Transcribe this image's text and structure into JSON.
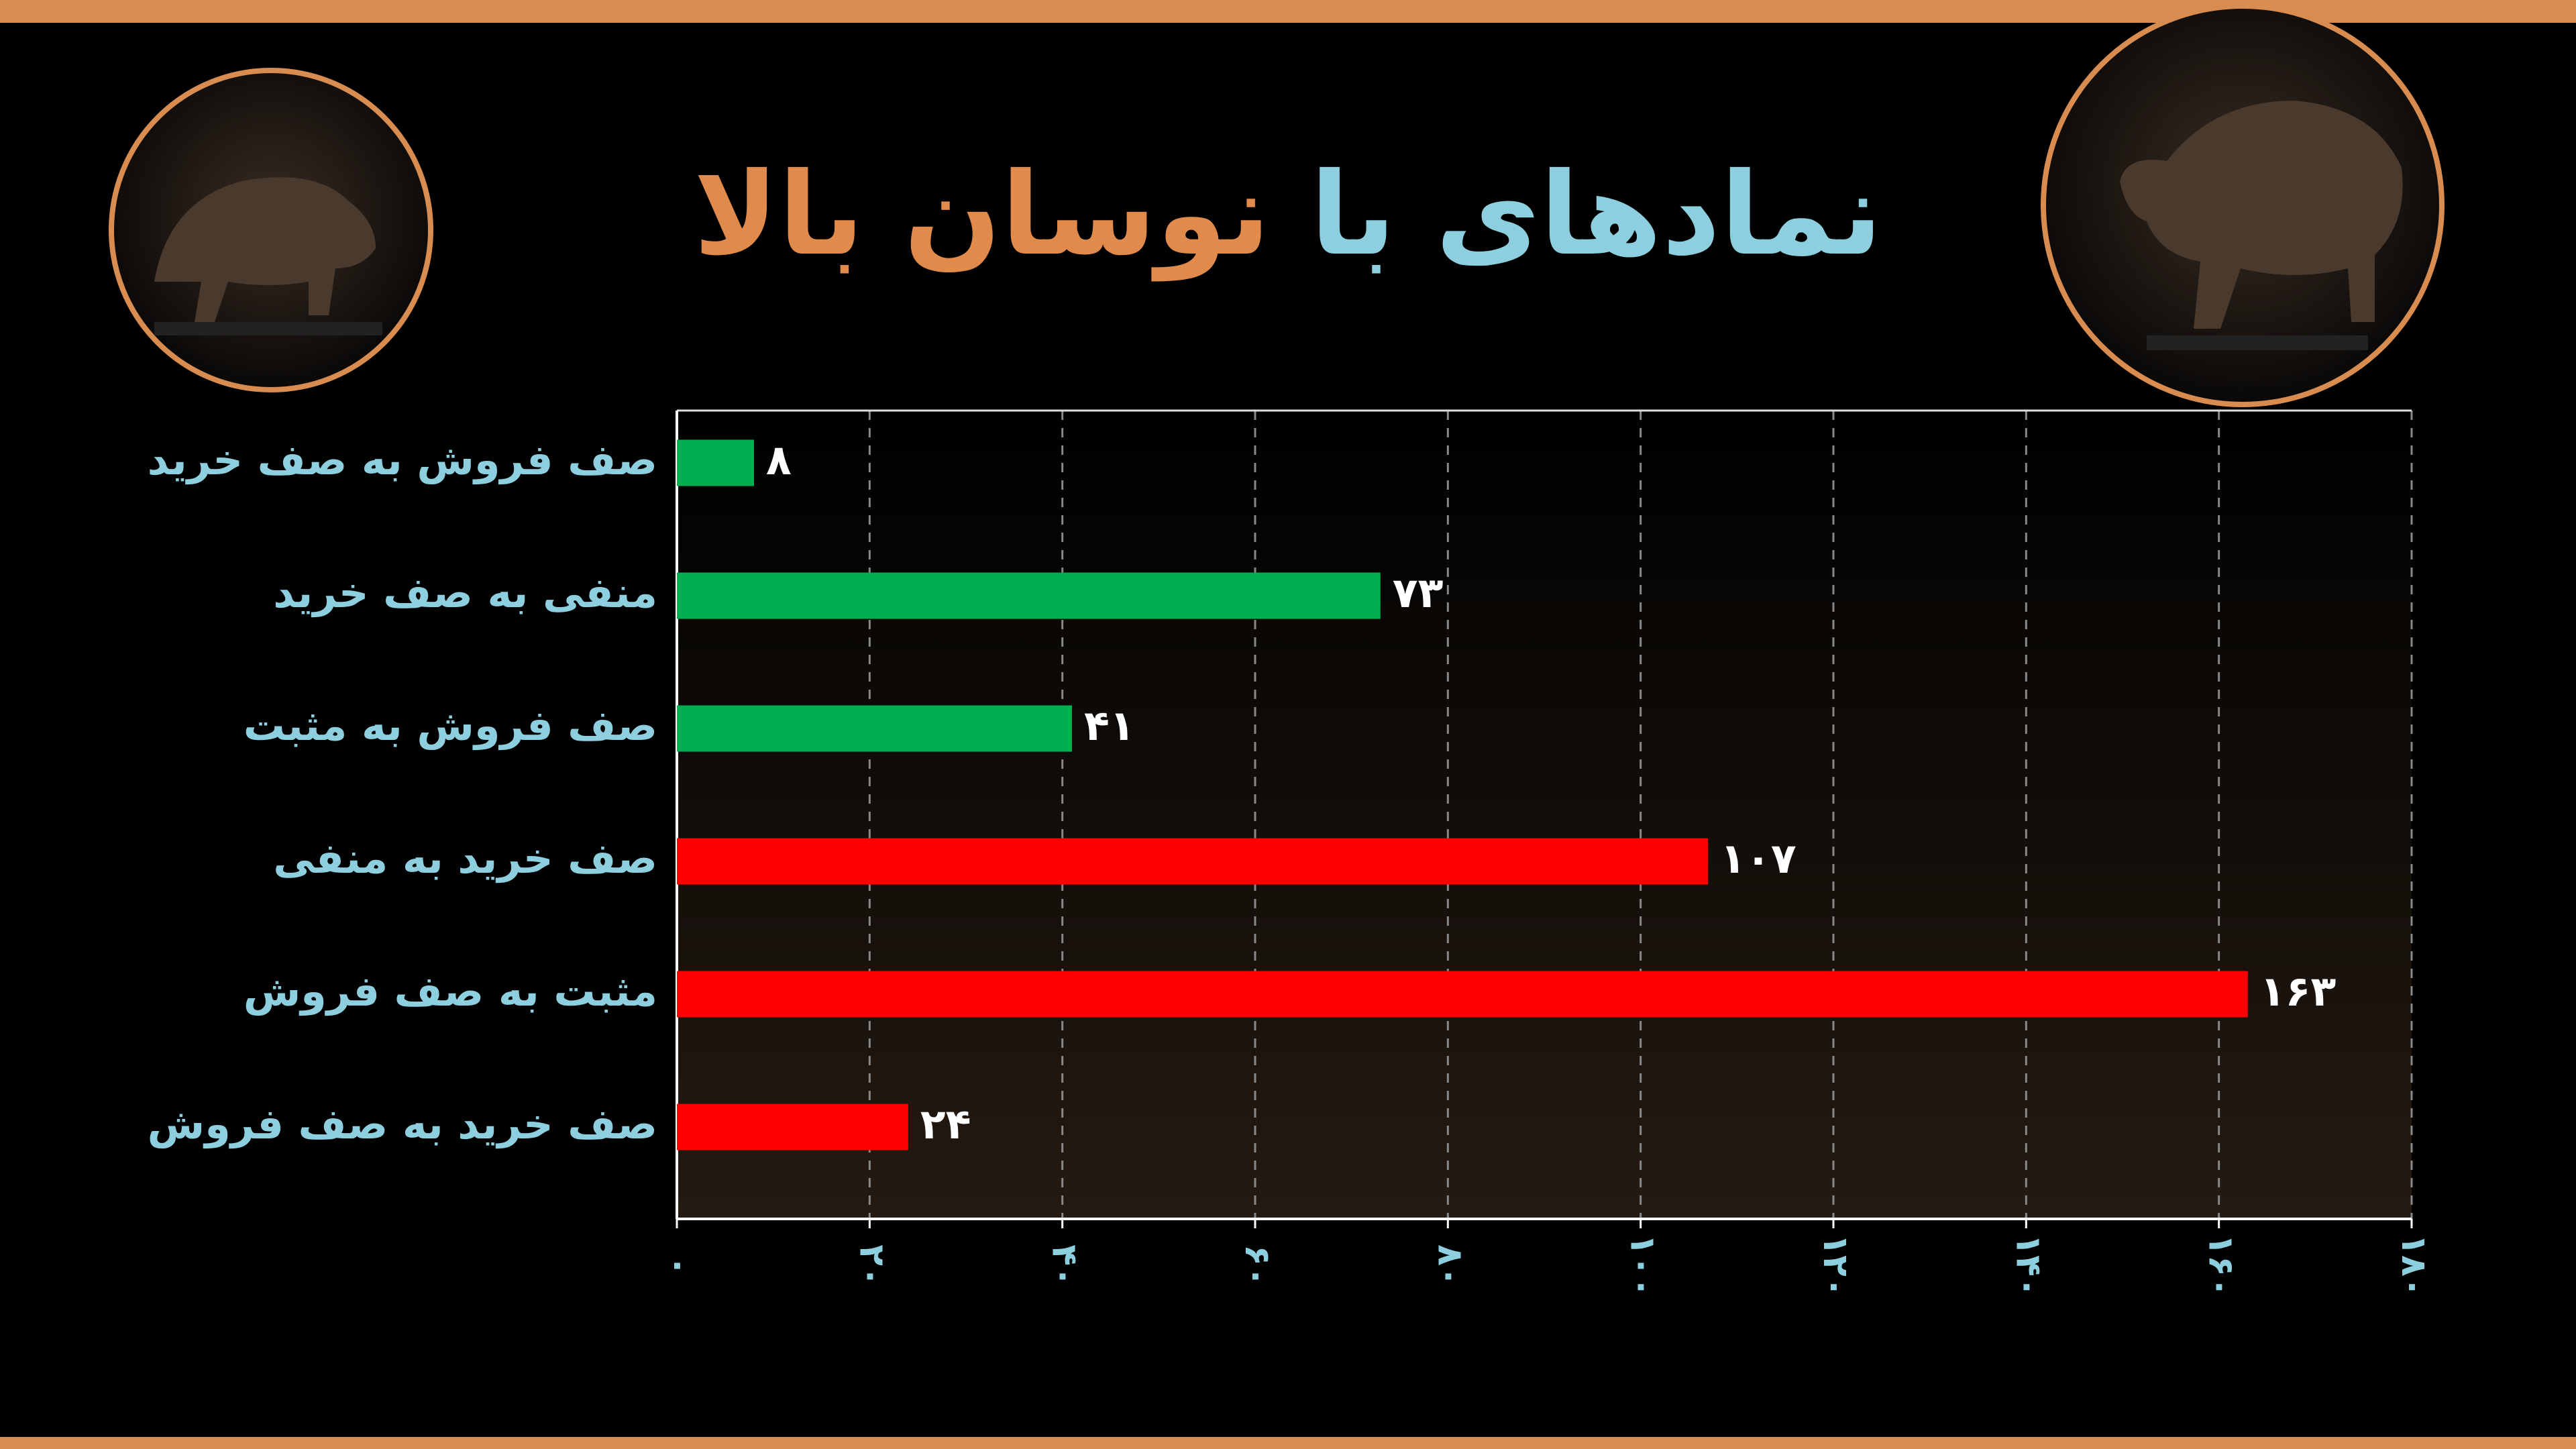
{
  "chart_data": {
    "type": "bar",
    "orientation": "horizontal",
    "title": [
      "نمادهای با",
      "نوسان بالا"
    ],
    "categories": [
      "صف فروش به صف خرید",
      "منفی به صف خرید",
      "صف فروش به مثبت",
      "صف خرید به منفی",
      "مثبت به صف فروش",
      "صف خرید به صف فروش"
    ],
    "values": [
      8,
      73,
      41,
      107,
      163,
      24
    ],
    "value_labels": [
      "۸",
      "۷۳",
      "۴۱",
      "۱۰۷",
      "۱۶۳",
      "۲۴"
    ],
    "colors": [
      "#00b050",
      "#00b050",
      "#00b050",
      "#ff0000",
      "#ff0000",
      "#ff0000"
    ],
    "xlim": [
      0,
      180
    ],
    "xticks": [
      {
        "value": 0,
        "label": "۰"
      },
      {
        "value": 20,
        "label": "۲۰"
      },
      {
        "value": 40,
        "label": "۴۰"
      },
      {
        "value": 60,
        "label": "۶۰"
      },
      {
        "value": 80,
        "label": "۸۰"
      },
      {
        "value": 100,
        "label": "۱۰۰"
      },
      {
        "value": 120,
        "label": "۱۲۰"
      },
      {
        "value": 140,
        "label": "۱۴۰"
      },
      {
        "value": 160,
        "label": "۱۶۰"
      },
      {
        "value": 180,
        "label": "۱۸۰"
      }
    ],
    "grid": true
  }
}
